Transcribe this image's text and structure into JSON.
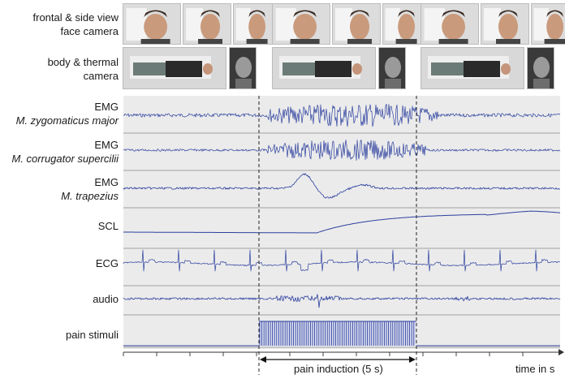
{
  "labels": {
    "face_line1": "frontal & side view",
    "face_line2": "face camera",
    "body_line1": "body & thermal",
    "body_line2": "camera",
    "emg": "EMG",
    "zygomaticus": "M. zygomaticus major",
    "corrugator": "M. corrugator supercilii",
    "trapezius": "M. trapezius",
    "scl": "SCL",
    "ecg": "ECG",
    "audio": "audio",
    "pain": "pain stimuli"
  },
  "annotations": {
    "pain_induction": "pain induction (5 s)",
    "time_axis": "time in s"
  },
  "colors": {
    "signal": "#2b3f9e",
    "panel_bg": "#ebebeb",
    "separator": "#a0a0a0",
    "dashed": "#222222"
  },
  "frames": [
    {
      "face": [
        "frontal-face-photo",
        "side-face-photo",
        "side-face-photo"
      ],
      "body": [
        "body-photo",
        "thermal-photo"
      ]
    },
    {
      "face": [
        "frontal-face-photo",
        "side-face-photo",
        "side-face-photo"
      ],
      "body": [
        "body-photo",
        "thermal-photo"
      ]
    },
    {
      "face": [
        "frontal-face-photo",
        "side-face-photo",
        "side-face-photo"
      ],
      "body": [
        "body-photo",
        "thermal-photo"
      ]
    }
  ]
}
